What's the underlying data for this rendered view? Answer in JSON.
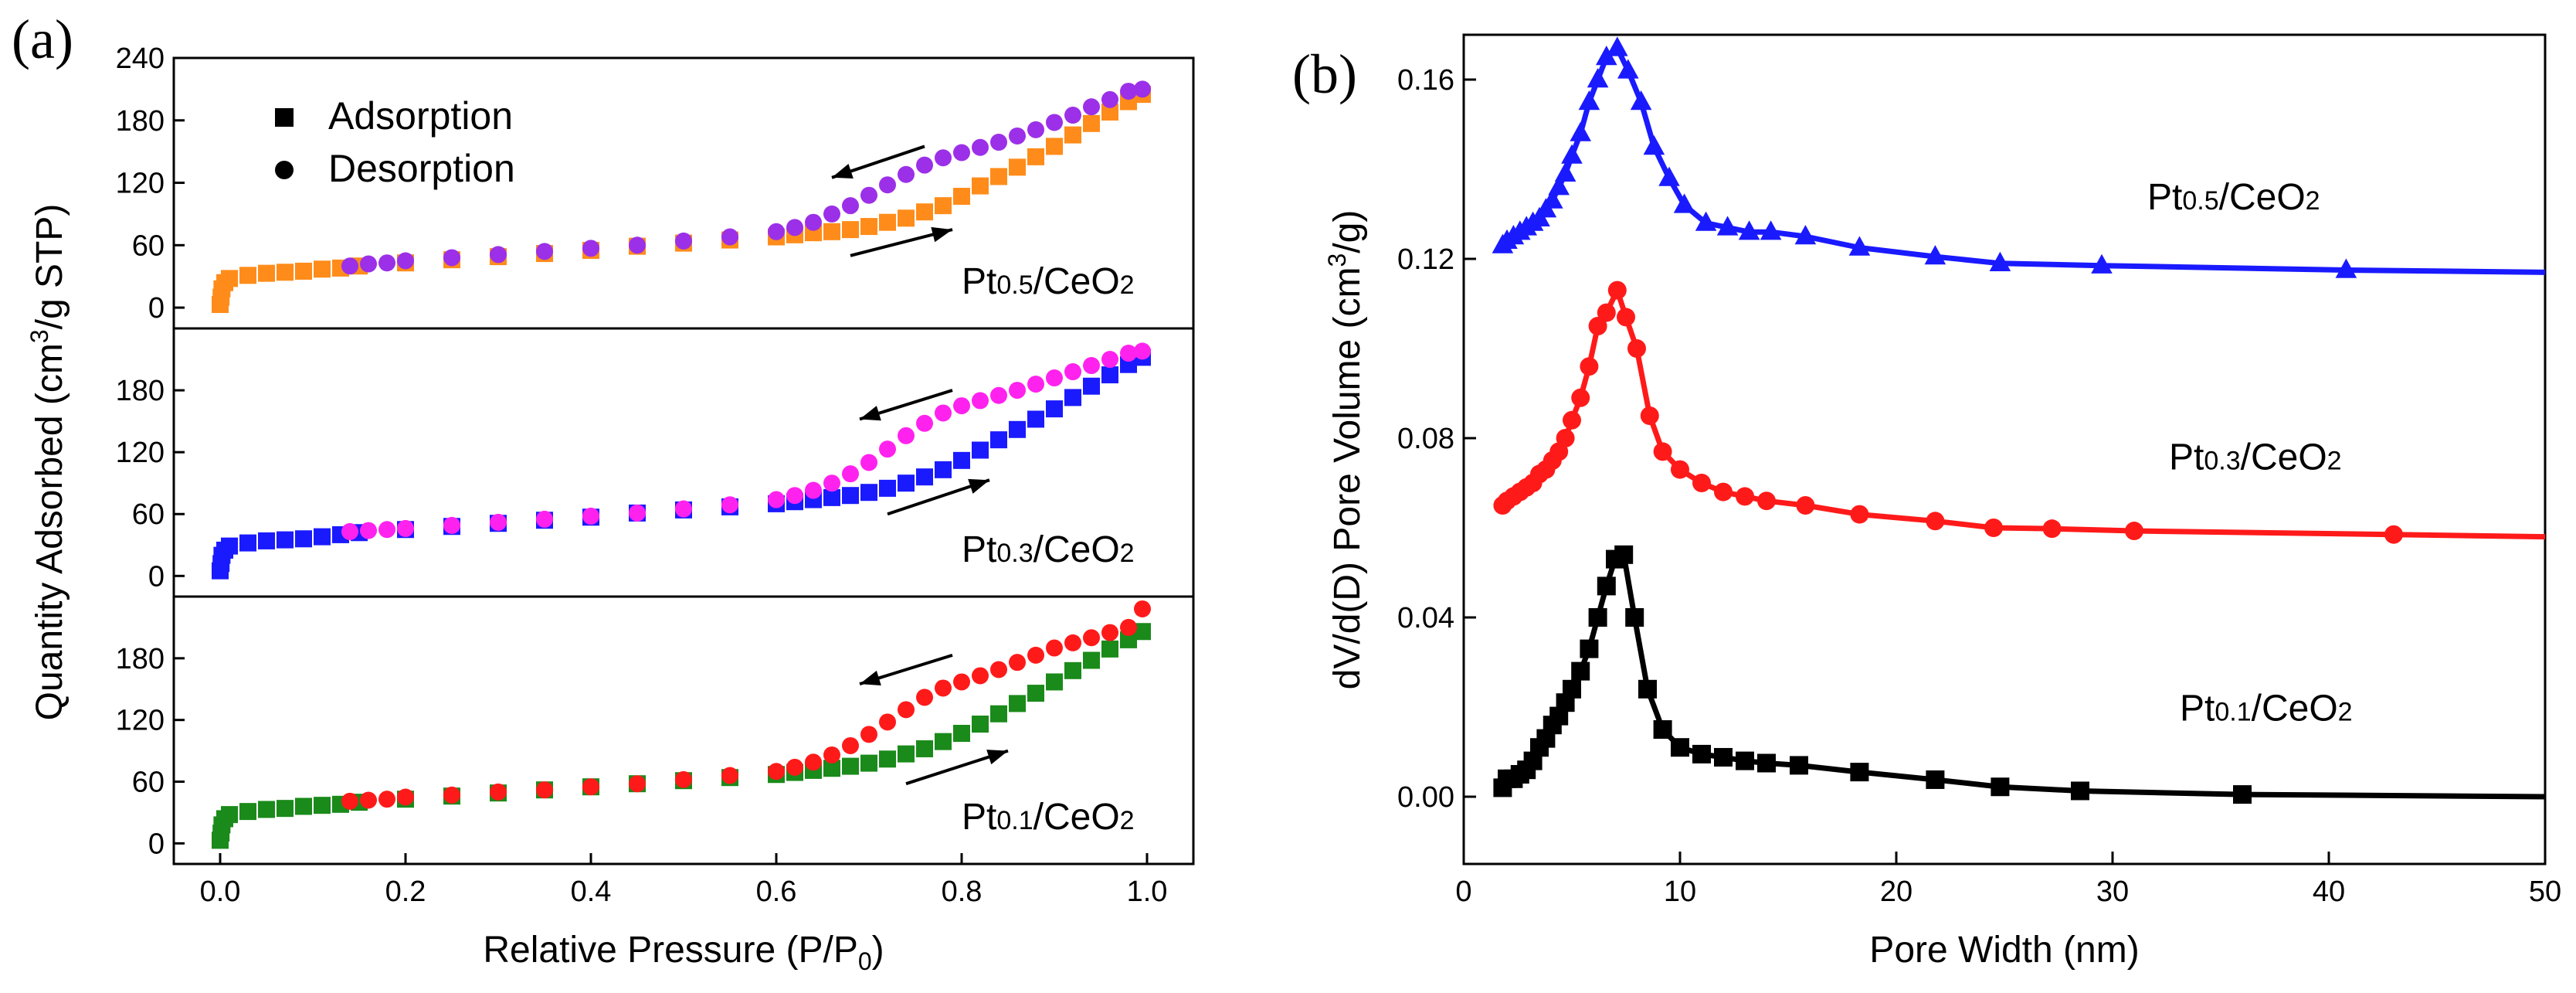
{
  "chart_data": [
    {
      "panel": "(a)",
      "type": "scatter",
      "xlabel": "Relative Pressure (P/P0)",
      "ylabel": "Quantity Adsorbed (cm3/g STP)",
      "xlim": [
        -0.05,
        1.05
      ],
      "xticks": [
        "0.0",
        "0.2",
        "0.4",
        "0.6",
        "0.8",
        "1.0"
      ],
      "legend": [
        "Adsorption",
        "Desorption"
      ],
      "subplots": [
        {
          "label": "Pt0.5/CeO2",
          "label_sub": "0.5",
          "ylim": [
            -20,
            240
          ],
          "yticks": [
            "0",
            "60",
            "120",
            "180",
            "240"
          ],
          "arrows": {
            "desorption": [
              [
                0.76,
                155
              ],
              [
                0.66,
                125
              ]
            ],
            "adsorption": [
              [
                0.68,
                50
              ],
              [
                0.79,
                75
              ]
            ]
          },
          "series": [
            {
              "name": "Adsorption",
              "color": "#ff8c1a",
              "marker": "square",
              "x": [
                0.0,
                0.001,
                0.002,
                0.005,
                0.01,
                0.03,
                0.05,
                0.07,
                0.09,
                0.11,
                0.13,
                0.15,
                0.2,
                0.25,
                0.3,
                0.35,
                0.4,
                0.45,
                0.5,
                0.55,
                0.6,
                0.62,
                0.64,
                0.66,
                0.68,
                0.7,
                0.72,
                0.74,
                0.76,
                0.78,
                0.8,
                0.82,
                0.84,
                0.86,
                0.88,
                0.9,
                0.92,
                0.94,
                0.96,
                0.98,
                0.995
              ],
              "y": [
                3,
                10,
                18,
                24,
                28,
                31,
                33,
                34,
                35,
                37,
                38,
                40,
                43,
                46,
                49,
                52,
                55,
                59,
                62,
                65,
                68,
                70,
                72,
                73,
                75,
                78,
                82,
                86,
                92,
                98,
                107,
                117,
                126,
                135,
                145,
                155,
                166,
                177,
                188,
                198,
                205
              ]
            },
            {
              "name": "Desorption",
              "color": "#9b30e8",
              "marker": "circle",
              "x": [
                0.995,
                0.98,
                0.96,
                0.94,
                0.92,
                0.9,
                0.88,
                0.86,
                0.84,
                0.82,
                0.8,
                0.78,
                0.76,
                0.74,
                0.72,
                0.7,
                0.68,
                0.66,
                0.64,
                0.62,
                0.6,
                0.55,
                0.5,
                0.45,
                0.4,
                0.35,
                0.3,
                0.25,
                0.2,
                0.18,
                0.16,
                0.14
              ],
              "y": [
                210,
                208,
                200,
                193,
                185,
                178,
                171,
                165,
                159,
                154,
                149,
                144,
                137,
                128,
                118,
                108,
                98,
                90,
                82,
                77,
                73,
                68,
                64,
                60,
                57,
                54,
                51,
                48,
                45,
                43,
                42,
                40
              ]
            }
          ]
        },
        {
          "label": "Pt0.3/CeO2",
          "label_sub": "0.3",
          "ylim": [
            -20,
            240
          ],
          "yticks": [
            "0",
            "60",
            "120",
            "180"
          ],
          "arrows": {
            "desorption": [
              [
                0.79,
                180
              ],
              [
                0.69,
                152
              ]
            ],
            "adsorption": [
              [
                0.72,
                60
              ],
              [
                0.83,
                93
              ]
            ]
          },
          "series": [
            {
              "name": "Adsorption",
              "color": "#1a1aff",
              "marker": "square",
              "x": [
                0.0,
                0.001,
                0.002,
                0.005,
                0.01,
                0.03,
                0.05,
                0.07,
                0.09,
                0.11,
                0.13,
                0.15,
                0.2,
                0.25,
                0.3,
                0.35,
                0.4,
                0.45,
                0.5,
                0.55,
                0.6,
                0.62,
                0.64,
                0.66,
                0.68,
                0.7,
                0.72,
                0.74,
                0.76,
                0.78,
                0.8,
                0.82,
                0.84,
                0.86,
                0.88,
                0.9,
                0.92,
                0.94,
                0.96,
                0.98,
                0.995
              ],
              "y": [
                5,
                12,
                20,
                25,
                29,
                32,
                34,
                35,
                36,
                38,
                40,
                42,
                45,
                48,
                51,
                54,
                57,
                61,
                64,
                67,
                70,
                72,
                74,
                76,
                78,
                81,
                85,
                90,
                96,
                103,
                112,
                122,
                132,
                142,
                152,
                162,
                173,
                184,
                195,
                205,
                212
              ]
            },
            {
              "name": "Desorption",
              "color": "#ff22ee",
              "marker": "circle",
              "x": [
                0.995,
                0.98,
                0.96,
                0.94,
                0.92,
                0.9,
                0.88,
                0.86,
                0.84,
                0.82,
                0.8,
                0.78,
                0.76,
                0.74,
                0.72,
                0.7,
                0.68,
                0.66,
                0.64,
                0.62,
                0.6,
                0.55,
                0.5,
                0.45,
                0.4,
                0.35,
                0.3,
                0.25,
                0.2,
                0.18,
                0.16,
                0.14
              ],
              "y": [
                218,
                216,
                210,
                204,
                198,
                192,
                186,
                180,
                175,
                170,
                165,
                158,
                148,
                136,
                123,
                110,
                99,
                90,
                83,
                78,
                74,
                69,
                65,
                61,
                58,
                55,
                52,
                49,
                46,
                45,
                44,
                43
              ]
            }
          ]
        },
        {
          "label": "Pt0.1/CeO2",
          "label_sub": "0.1",
          "ylim": [
            -20,
            240
          ],
          "yticks": [
            "0",
            "60",
            "120",
            "180"
          ],
          "arrows": {
            "desorption": [
              [
                0.79,
                183
              ],
              [
                0.69,
                155
              ]
            ],
            "adsorption": [
              [
                0.74,
                58
              ],
              [
                0.85,
                90
              ]
            ]
          },
          "series": [
            {
              "name": "Adsorption",
              "color": "#1a8a1a",
              "marker": "square",
              "x": [
                0.0,
                0.001,
                0.002,
                0.005,
                0.01,
                0.03,
                0.05,
                0.07,
                0.09,
                0.11,
                0.13,
                0.15,
                0.2,
                0.25,
                0.3,
                0.35,
                0.4,
                0.45,
                0.5,
                0.55,
                0.6,
                0.62,
                0.64,
                0.66,
                0.68,
                0.7,
                0.72,
                0.74,
                0.76,
                0.78,
                0.8,
                0.82,
                0.84,
                0.86,
                0.88,
                0.9,
                0.92,
                0.94,
                0.96,
                0.98,
                0.995
              ],
              "y": [
                3,
                10,
                18,
                24,
                28,
                31,
                33,
                34,
                36,
                37,
                38,
                40,
                43,
                46,
                49,
                52,
                55,
                58,
                61,
                64,
                67,
                69,
                71,
                73,
                75,
                78,
                82,
                87,
                92,
                99,
                107,
                116,
                126,
                136,
                146,
                157,
                168,
                178,
                189,
                198,
                206
              ]
            },
            {
              "name": "Desorption",
              "color": "#ff1a1a",
              "marker": "circle",
              "x": [
                0.995,
                0.98,
                0.96,
                0.94,
                0.92,
                0.9,
                0.88,
                0.86,
                0.84,
                0.82,
                0.8,
                0.78,
                0.76,
                0.74,
                0.72,
                0.7,
                0.68,
                0.66,
                0.64,
                0.62,
                0.6,
                0.55,
                0.5,
                0.45,
                0.4,
                0.35,
                0.3,
                0.25,
                0.2,
                0.18,
                0.16,
                0.14
              ],
              "y": [
                228,
                210,
                205,
                200,
                195,
                190,
                183,
                176,
                169,
                163,
                157,
                151,
                142,
                130,
                118,
                106,
                95,
                86,
                79,
                74,
                70,
                66,
                62,
                58,
                55,
                52,
                50,
                47,
                45,
                43,
                42,
                41
              ]
            }
          ]
        }
      ]
    },
    {
      "panel": "(b)",
      "type": "line",
      "xlabel": "Pore Width (nm)",
      "ylabel": "dV/d(D) Pore Volume (cm3/g)",
      "xlim": [
        0,
        50
      ],
      "ylim": [
        -0.015,
        0.17
      ],
      "xticks": [
        "0",
        "10",
        "20",
        "30",
        "40",
        "50"
      ],
      "yticks": [
        "0.00",
        "0.04",
        "0.08",
        "0.12",
        "0.16"
      ],
      "series": [
        {
          "name": "Pt0.1/CeO2",
          "label_sub": "0.1",
          "color": "#000000",
          "marker": "square",
          "label_pos": [
            41.5,
            0.017
          ],
          "x": [
            1.8,
            2.0,
            2.3,
            2.6,
            2.9,
            3.2,
            3.5,
            3.8,
            4.1,
            4.4,
            4.7,
            5.0,
            5.4,
            5.8,
            6.2,
            6.6,
            7.0,
            7.4,
            7.9,
            8.5,
            9.2,
            10.0,
            11.0,
            12.0,
            13.0,
            14.0,
            15.5,
            18.3,
            21.8,
            24.8,
            28.5,
            36.0,
            50.0
          ],
          "y": [
            0.002,
            0.004,
            0.004,
            0.005,
            0.006,
            0.008,
            0.011,
            0.013,
            0.016,
            0.018,
            0.021,
            0.024,
            0.028,
            0.033,
            0.04,
            0.047,
            0.053,
            0.054,
            0.04,
            0.024,
            0.015,
            0.011,
            0.0095,
            0.0088,
            0.008,
            0.0075,
            0.007,
            0.0055,
            0.0038,
            0.0022,
            0.0013,
            0.0005,
            0.0
          ]
        },
        {
          "name": "Pt0.3/CeO2",
          "label_sub": "0.3",
          "color": "#ff1a1a",
          "marker": "circle",
          "label_pos": [
            41.0,
            0.073
          ],
          "x": [
            1.8,
            2.0,
            2.3,
            2.6,
            2.9,
            3.2,
            3.5,
            3.8,
            4.1,
            4.4,
            4.7,
            5.0,
            5.4,
            5.8,
            6.2,
            6.6,
            7.1,
            7.5,
            8.0,
            8.6,
            9.2,
            10.0,
            11.0,
            12.0,
            13.0,
            14.0,
            15.8,
            18.3,
            21.8,
            24.5,
            27.2,
            31.0,
            43.0,
            50.0
          ],
          "y": [
            0.065,
            0.066,
            0.067,
            0.068,
            0.069,
            0.07,
            0.072,
            0.073,
            0.075,
            0.077,
            0.08,
            0.084,
            0.089,
            0.096,
            0.105,
            0.108,
            0.113,
            0.107,
            0.1,
            0.085,
            0.077,
            0.073,
            0.07,
            0.068,
            0.067,
            0.066,
            0.065,
            0.063,
            0.0615,
            0.06,
            0.0598,
            0.0593,
            0.0585,
            0.058
          ]
        },
        {
          "name": "Pt0.5/CeO2",
          "label_sub": "0.5",
          "color": "#1a1aff",
          "marker": "triangle",
          "label_pos": [
            40.0,
            0.131
          ],
          "x": [
            1.8,
            2.0,
            2.3,
            2.6,
            2.9,
            3.2,
            3.5,
            3.8,
            4.1,
            4.4,
            4.7,
            5.0,
            5.4,
            5.8,
            6.2,
            6.6,
            7.1,
            7.6,
            8.2,
            8.8,
            9.5,
            10.2,
            11.2,
            12.2,
            13.2,
            14.2,
            15.8,
            18.3,
            21.8,
            24.8,
            29.5,
            40.8,
            50.0
          ],
          "y": [
            0.123,
            0.124,
            0.125,
            0.126,
            0.127,
            0.128,
            0.129,
            0.131,
            0.133,
            0.136,
            0.139,
            0.143,
            0.148,
            0.155,
            0.16,
            0.165,
            0.167,
            0.162,
            0.155,
            0.145,
            0.138,
            0.132,
            0.128,
            0.127,
            0.126,
            0.126,
            0.125,
            0.1225,
            0.1205,
            0.119,
            0.1185,
            0.1175,
            0.117
          ]
        }
      ]
    }
  ]
}
